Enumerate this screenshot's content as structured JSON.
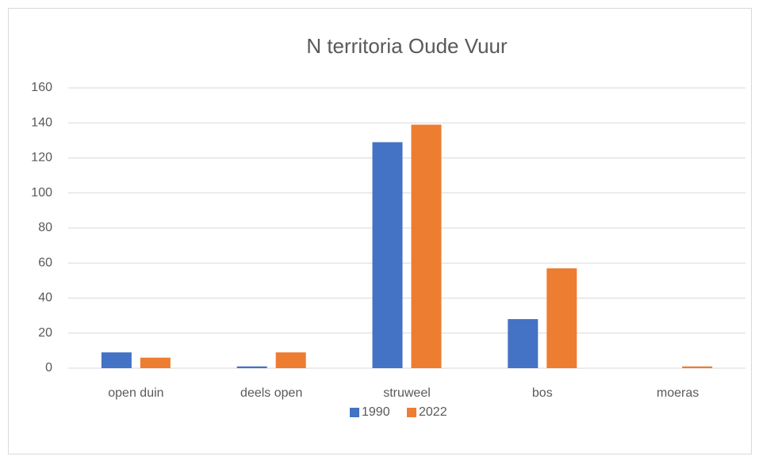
{
  "chart_data": {
    "type": "bar",
    "title": "N territoria Oude Vuur",
    "categories": [
      "open duin",
      "deels open",
      "struweel",
      "bos",
      "moeras"
    ],
    "series": [
      {
        "name": "1990",
        "color": "#4472c4",
        "values": [
          9,
          1,
          129,
          28,
          0
        ]
      },
      {
        "name": "2022",
        "color": "#ed7d31",
        "values": [
          6,
          9,
          139,
          57,
          1
        ]
      }
    ],
    "ylim": [
      0,
      160
    ],
    "yticks": [
      0,
      20,
      40,
      60,
      80,
      100,
      120,
      140,
      160
    ],
    "grid": true,
    "legend": "bottom"
  }
}
